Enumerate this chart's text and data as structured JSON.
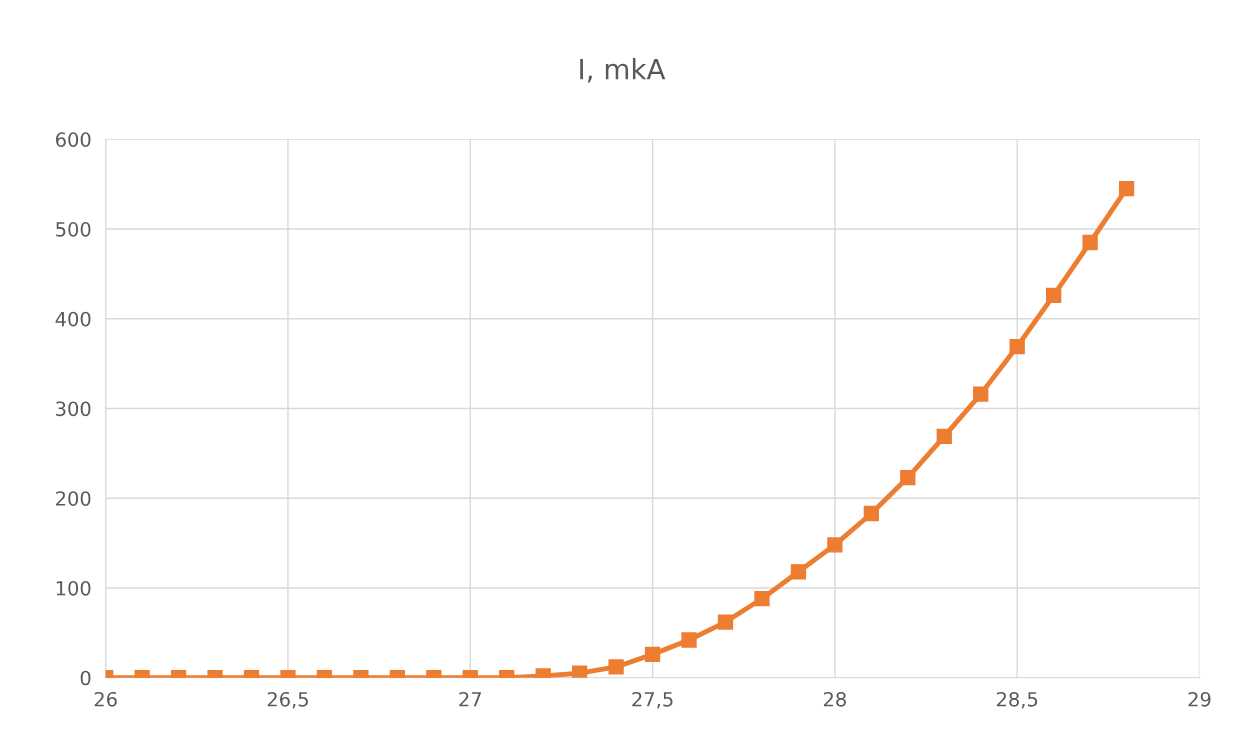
{
  "chart_data": {
    "type": "line",
    "title": "I, mkA",
    "x": [
      26,
      26.1,
      26.2,
      26.3,
      26.4,
      26.5,
      26.6,
      26.7,
      26.8,
      26.9,
      27,
      27.1,
      27.2,
      27.3,
      27.4,
      27.5,
      27.6,
      27.7,
      27.8,
      27.9,
      28,
      28.1,
      28.2,
      28.3,
      28.4,
      28.5,
      28.6,
      28.7,
      28.8
    ],
    "series": [
      {
        "color": "#ed7d31",
        "values": [
          0,
          0,
          0,
          0,
          0,
          0,
          0,
          0,
          0,
          0,
          0,
          0,
          2,
          5,
          12,
          26,
          42,
          62,
          88,
          118,
          148,
          183,
          223,
          269,
          316,
          369,
          426,
          485,
          545
        ]
      }
    ],
    "xlim": [
      26,
      29
    ],
    "xticks": [
      26,
      {
        "value": 26.5,
        "label": "26,5"
      },
      27,
      {
        "value": 27.5,
        "label": "27,5"
      },
      28,
      {
        "value": 28.5,
        "label": "28,5"
      },
      29
    ],
    "ylim": [
      0,
      600
    ],
    "yticks": [
      0,
      100,
      200,
      300,
      400,
      500,
      600
    ],
    "grid": true,
    "marker": "square",
    "line_style": "solid"
  }
}
